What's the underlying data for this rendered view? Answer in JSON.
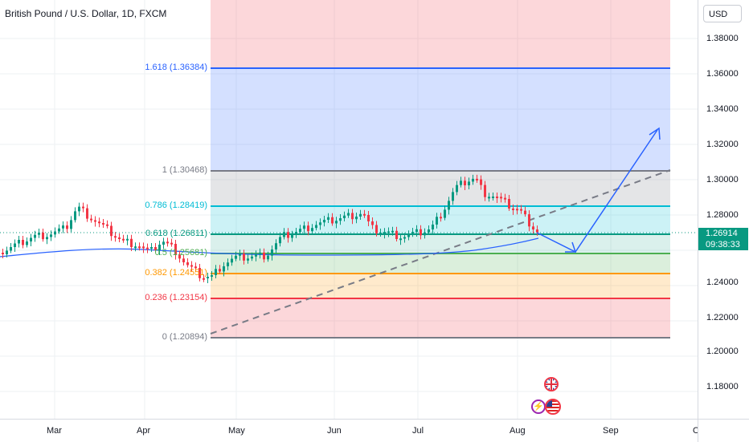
{
  "title": "British Pound / U.S. Dollar, 1D, FXCM",
  "currency": "USD",
  "price_ticks": [
    "1.38000",
    "1.36000",
    "1.34000",
    "1.32000",
    "1.30000",
    "1.28000",
    "1.24000",
    "1.22000",
    "1.20000",
    "1.18000"
  ],
  "time_ticks": [
    "Mar",
    "Apr",
    "May",
    "Jun",
    "Jul",
    "Aug",
    "Sep",
    "O"
  ],
  "last_price": "1.26914",
  "countdown": "09:38:33",
  "fib_levels": [
    {
      "label": "1.618 (1.36384)",
      "color": "#2962ff"
    },
    {
      "label": "1 (1.30468)",
      "color": "#787b86"
    },
    {
      "label": "0.786 (1.28419)",
      "color": "#00bcd4"
    },
    {
      "label": "0.618 (1.26811)",
      "color": "#089981"
    },
    {
      "label": "0.5 (1.25681)",
      "color": "#4caf50"
    },
    {
      "label": "0.382 (1.24551)",
      "color": "#ff9800"
    },
    {
      "label": "0.236 (1.23154)",
      "color": "#f23645"
    },
    {
      "label": "0 (1.20894)",
      "color": "#787b86"
    }
  ],
  "colors": {
    "up": "#089981",
    "down": "#f23645",
    "fib_blue": "#2962ff",
    "ma": "#2962ff"
  },
  "events": [
    {
      "icon": "uk-flag-icon"
    },
    {
      "icon": "lightning-icon"
    },
    {
      "icon": "us-flag-icon"
    }
  ]
}
